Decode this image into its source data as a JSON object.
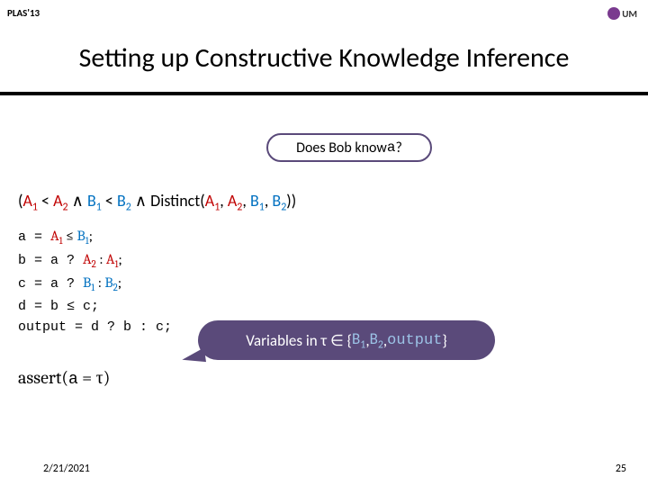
{
  "header": {
    "label": "PLAS'13",
    "logo_text": "UM"
  },
  "title": "Setting up Constructive Knowledge Inference",
  "bubble1": {
    "prefix": "Does Bob know ",
    "var": "a",
    "suffix": " ?"
  },
  "formula": {
    "open": "(",
    "A1": "A",
    "A1sub": "1",
    "lt1": " < ",
    "A2": "A",
    "A2sub": "2",
    "and1": " ∧ ",
    "B1": "B",
    "B1sub": "1",
    "lt2": " < ",
    "B2": "B",
    "B2sub": "2",
    "and2": " ∧ Distinct(",
    "dA1": "A",
    "dA1sub": "1",
    "c1": ", ",
    "dA2": "A",
    "dA2sub": "2",
    "c2": ", ",
    "dB1": "B",
    "dB1sub": "1",
    "c3": ", ",
    "dB2": "B",
    "dB2sub": "2",
    "close": "))"
  },
  "code": {
    "l1a": "a = ",
    "l1b": "A",
    "l1bsub": "1",
    "l1c": " ≤ ",
    "l1d": "B",
    "l1dsub": "1",
    "l1e": ";",
    "l2": "b = a ? ",
    "l2a": "A",
    "l2asub": "2",
    "l2b": " : ",
    "l2c": "A",
    "l2csub": "1",
    "l2d": ";",
    "l3": "c = a ? ",
    "l3a": "B",
    "l3asub": "1",
    "l3b": " : ",
    "l3c": "B",
    "l3csub": "2",
    "l3d": ";",
    "l4": "d = b ≤ c;",
    "l5": "output = d ? b : c;"
  },
  "bubble2": {
    "prefix": "Variables in τ ∈ { ",
    "B1": "B",
    "B1sub": "1",
    "c1": ", ",
    "B2": "B",
    "B2sub": "2",
    "c2": ", ",
    "out": "output",
    "suffix": " }"
  },
  "assert": {
    "fn": "assert",
    "open": "(",
    "var": "a",
    "eq": " = τ",
    "close": ")"
  },
  "footer": {
    "date": "2/21/2021",
    "page": "25"
  },
  "colors": {
    "accent_red": "#c00000",
    "accent_blue": "#0070c0",
    "bubble_purple": "#5a4a7a",
    "underline": "#000000"
  }
}
